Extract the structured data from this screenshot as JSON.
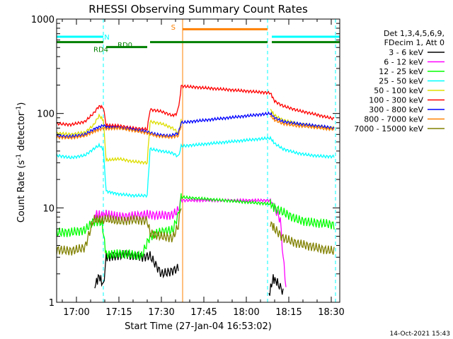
{
  "chart_data": {
    "type": "line",
    "title": "RHESSI Observing Summary Count Rates",
    "xlabel": "Start Time (27-Jan-04 16:53:02)",
    "ylabel_main": "Count Rate (s",
    "ylabel_sup1": "-1",
    "ylabel_mid": " detector",
    "ylabel_sup2": "-1",
    "ylabel_end": ")",
    "x_unit": "minutes since 16:53:02",
    "xlim": [
      0,
      100
    ],
    "ylim": [
      1,
      1000
    ],
    "y_scale": "log",
    "x_ticks": [
      {
        "t": 7,
        "label": "17:00"
      },
      {
        "t": 22,
        "label": "17:15"
      },
      {
        "t": 37,
        "label": "17:30"
      },
      {
        "t": 52,
        "label": "17:45"
      },
      {
        "t": 67,
        "label": "18:00"
      },
      {
        "t": 82,
        "label": "18:15"
      },
      {
        "t": 97,
        "label": "18:30"
      }
    ],
    "y_ticks": [
      {
        "v": 1,
        "label": "1"
      },
      {
        "v": 10,
        "label": "10"
      },
      {
        "v": 100,
        "label": "100"
      },
      {
        "v": 1000,
        "label": "1000"
      }
    ],
    "legend": {
      "header1": "Det 1,3,4,5,6,9,",
      "header2": "FDecim 1, Att 0",
      "entries": [
        {
          "label": "3 - 6 keV",
          "color": "#000000"
        },
        {
          "label": "6 - 12 keV",
          "color": "#ff00ff"
        },
        {
          "label": "12 - 25 keV",
          "color": "#00ff00"
        },
        {
          "label": "25 - 50 keV",
          "color": "#00ffff"
        },
        {
          "label": "50 - 100 keV",
          "color": "#dddd00"
        },
        {
          "label": "100 - 300 keV",
          "color": "#ff0000"
        },
        {
          "label": "300 - 800 keV",
          "color": "#0000ff"
        },
        {
          "label": "800 - 7000 keV",
          "color": "#ff8000"
        },
        {
          "label": "7000 - 15000 keV",
          "color": "#808000"
        }
      ]
    },
    "flags": [
      {
        "code": "N",
        "color": "#00ffff",
        "level": 650,
        "segments": [
          [
            0,
            16.5
          ],
          [
            76,
            100
          ]
        ]
      },
      {
        "code": "S",
        "color": "#ff8000",
        "level": 780,
        "segments": [
          [
            44.5,
            74.5
          ]
        ]
      },
      {
        "code": "RD0",
        "color": "#008000",
        "level": 570,
        "segments": [
          [
            0,
            16.5
          ],
          [
            33,
            74.5
          ],
          [
            76,
            100
          ]
        ]
      },
      {
        "code": "RD4",
        "color": "#008000",
        "level": 505,
        "segments": [
          [
            17.5,
            32
          ]
        ]
      }
    ],
    "vlines": [
      {
        "t": 0,
        "color": "#00ffff",
        "style": "solid"
      },
      {
        "t": 16.5,
        "color": "#00ffff",
        "style": "dashed"
      },
      {
        "t": 44.5,
        "color": "#ff8000",
        "style": "solid"
      },
      {
        "t": 74.5,
        "color": "#00ffff",
        "style": "dashed"
      },
      {
        "t": 98.5,
        "color": "#00ffff",
        "style": "dashed"
      }
    ],
    "series": [
      {
        "name": "3 - 6 keV",
        "color": "#000000",
        "x": [
          13.5,
          15,
          16.5,
          17.5,
          20,
          25,
          30,
          33,
          35,
          37,
          40,
          43,
          75,
          76.5,
          78,
          80
        ],
        "y": [
          1.5,
          1.9,
          1.5,
          3.0,
          3.1,
          3.2,
          3.0,
          3.1,
          2.5,
          2.0,
          2.1,
          2.3,
          1.2,
          1.8,
          1.6,
          1.3
        ]
      },
      {
        "name": "6 - 12 keV",
        "color": "#ff00ff",
        "x": [
          13.5,
          16,
          17.5,
          22,
          27,
          32,
          36,
          41,
          43,
          44,
          75.5,
          77,
          79,
          80,
          81
        ],
        "y": [
          8.5,
          8.3,
          8.5,
          8.0,
          8.2,
          8.5,
          8.3,
          8.4,
          9.5,
          12,
          12,
          10,
          7.5,
          3,
          1.5
        ]
      },
      {
        "name": "12 - 25 keV",
        "color": "#00ff00",
        "x": [
          0,
          5,
          10,
          13,
          16,
          17.5,
          22,
          27,
          30,
          33,
          37,
          41,
          43,
          44,
          75.5,
          77,
          80,
          85,
          90,
          95,
          98
        ],
        "y": [
          5.5,
          5.5,
          5.8,
          7.2,
          7.0,
          3.2,
          3.3,
          3.2,
          3.1,
          5.0,
          5.6,
          5.8,
          8.5,
          13,
          11,
          10,
          9,
          7.5,
          7.0,
          6.8,
          6.6
        ]
      },
      {
        "name": "25 - 50 keV",
        "color": "#00ffff",
        "x": [
          0,
          5,
          10,
          13,
          15,
          16.5,
          17.5,
          22,
          27,
          32,
          33,
          37,
          41,
          43,
          44,
          75.5,
          77,
          80,
          85,
          90,
          95,
          98
        ],
        "y": [
          36,
          34,
          36,
          42,
          46,
          42,
          15,
          14,
          13.5,
          13.5,
          42,
          40,
          38,
          35,
          45,
          55,
          48,
          42,
          38,
          36,
          35,
          35
        ]
      },
      {
        "name": "50 - 100 keV",
        "color": "#dddd00",
        "x": [
          0,
          5,
          10,
          13,
          15,
          16.5,
          17.5,
          22,
          27,
          32,
          33,
          37,
          41,
          43,
          44,
          75.5,
          77,
          80,
          85,
          90,
          95,
          98
        ],
        "y": [
          62,
          60,
          63,
          75,
          95,
          85,
          32,
          33,
          31,
          30,
          82,
          78,
          70,
          62,
          85,
          110,
          95,
          85,
          78,
          74,
          71,
          70
        ]
      },
      {
        "name": "100 - 300 keV",
        "color": "#ff0000",
        "x": [
          0,
          5,
          10,
          13,
          15,
          16.5,
          17.5,
          22,
          27,
          32,
          33,
          37,
          41,
          42.5,
          43.5,
          44,
          75.5,
          77,
          80,
          85,
          90,
          95,
          98
        ],
        "y": [
          78,
          76,
          82,
          100,
          120,
          115,
          75,
          74,
          70,
          68,
          110,
          105,
          95,
          100,
          140,
          195,
          165,
          135,
          120,
          108,
          100,
          92,
          88
        ]
      },
      {
        "name": "300 - 800 keV",
        "color": "#0000ff",
        "x": [
          0,
          5,
          10,
          13,
          16.5,
          17.5,
          22,
          27,
          32,
          35,
          40,
          43,
          44,
          75.5,
          77,
          80,
          85,
          90,
          95,
          98
        ],
        "y": [
          58,
          57,
          60,
          68,
          75,
          72,
          71,
          68,
          64,
          60,
          58,
          62,
          80,
          100,
          90,
          82,
          78,
          75,
          72,
          70
        ]
      },
      {
        "name": "800 - 7000 keV",
        "color": "#ff8000",
        "x": [
          0,
          5,
          10,
          13,
          16.5,
          17.5,
          22,
          27,
          32,
          35,
          40,
          43,
          44,
          75.5,
          77,
          80,
          85,
          90,
          95,
          98
        ],
        "y": [
          56,
          55,
          58,
          64,
          70,
          69,
          70,
          66,
          62,
          58,
          56,
          58,
          75,
          95,
          85,
          78,
          74,
          72,
          69,
          68
        ]
      },
      {
        "name": "7000 - 15000 keV",
        "color": "#808000",
        "x": [
          0,
          5,
          10,
          13,
          16.5,
          17.5,
          22,
          27,
          32,
          33,
          37,
          41,
          43,
          44,
          75.5,
          77,
          80,
          85,
          90,
          95,
          98
        ],
        "y": [
          3.6,
          3.5,
          3.8,
          7.5,
          7.4,
          7.6,
          7.2,
          7.5,
          7.3,
          5.4,
          5.0,
          4.8,
          6.5,
          11,
          7.0,
          6.0,
          4.8,
          4.2,
          3.9,
          3.6,
          3.5
        ]
      }
    ],
    "grid": false,
    "legend_position": "right",
    "timestamp": "14-Oct-2021 15:43"
  }
}
